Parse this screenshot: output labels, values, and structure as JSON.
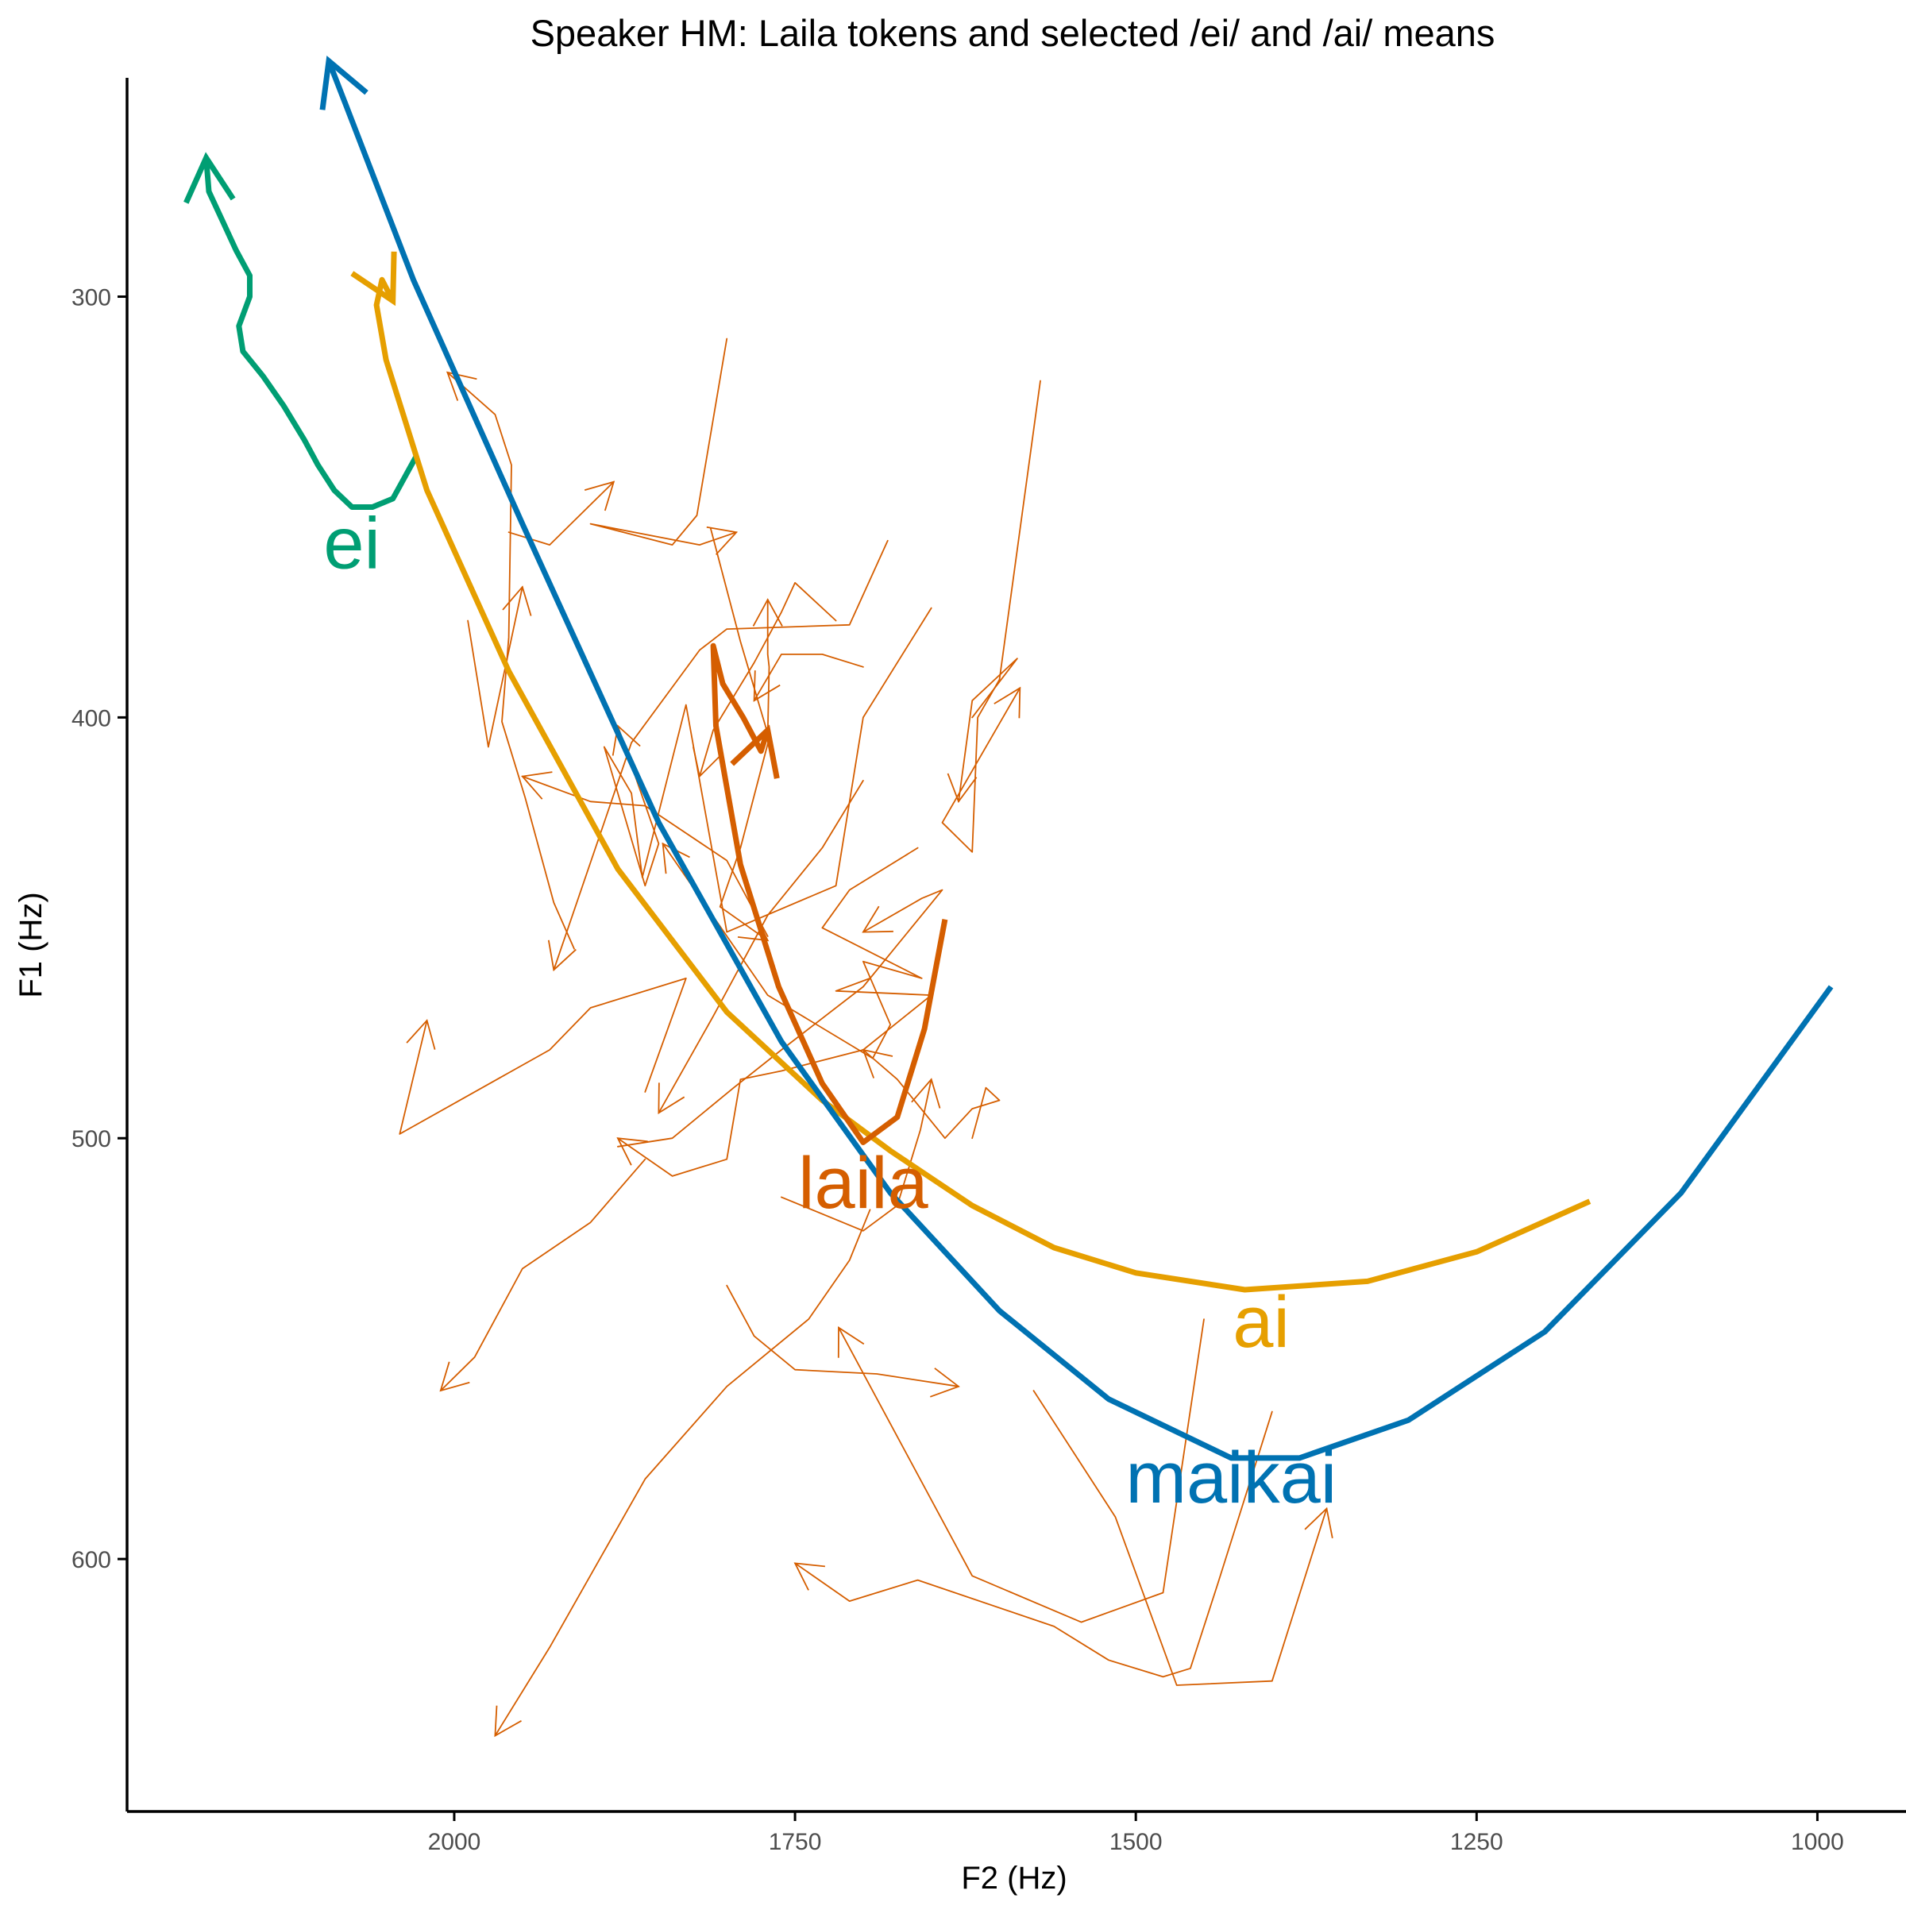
{
  "chart_data": {
    "type": "line",
    "title": "Speaker HM: Laila tokens and selected /ei/ and /ai/ means",
    "xlabel": "F2 (Hz)",
    "ylabel": "F1 (Hz)",
    "x_reversed": true,
    "y_reversed": true,
    "xlim": [
      2240,
      935
    ],
    "ylim": [
      248,
      660
    ],
    "x_ticks": [
      2000,
      1750,
      1500,
      1250,
      1000
    ],
    "y_ticks": [
      300,
      400,
      500,
      600
    ],
    "grid": false,
    "legend": "none",
    "colors": {
      "ei": "#009E73",
      "ai": "#E69F00",
      "maikai": "#0072B2",
      "laila": "#D55E00",
      "tokens": "#D55E00"
    },
    "series": [
      {
        "name": "ei",
        "label": "ei",
        "label_at": [
          2075,
          360
        ],
        "color": "#009E73",
        "x": [
          2028,
          2045,
          2060,
          2075,
          2088,
          2100,
          2110,
          2125,
          2140,
          2155,
          2158,
          2150,
          2150,
          2160,
          2170,
          2180,
          2182
        ],
        "y": [
          338,
          348,
          350,
          350,
          346,
          340,
          334,
          326,
          319,
          313,
          307,
          300,
          295,
          289,
          282,
          275,
          267
        ]
      },
      {
        "name": "ai",
        "label": "ai",
        "label_at": [
          1408,
          545
        ],
        "color": "#E69F00",
        "x": [
          1167,
          1250,
          1330,
          1420,
          1500,
          1560,
          1620,
          1680,
          1730,
          1800,
          1880,
          1960,
          2020,
          2050,
          2057,
          2053,
          2045
        ],
        "y": [
          515,
          527,
          534,
          536,
          532,
          526,
          516,
          503,
          491,
          470,
          436,
          389,
          346,
          315,
          302,
          296,
          301
        ]
      },
      {
        "name": "maikai",
        "label": "maikai",
        "label_at": [
          1430,
          582
        ],
        "color": "#0072B2",
        "x": [
          990,
          1100,
          1200,
          1300,
          1380,
          1430,
          1520,
          1600,
          1680,
          1760,
          1850,
          1950,
          2030,
          2080,
          2092
        ],
        "y": [
          464,
          513,
          546,
          567,
          576,
          576,
          562,
          541,
          513,
          477,
          425,
          354,
          296,
          254,
          244
        ]
      },
      {
        "name": "laila",
        "label": "laila",
        "label_at": [
          1700,
          512
        ],
        "color": "#D55E00",
        "x": [
          1640,
          1655,
          1675,
          1700,
          1730,
          1762,
          1790,
          1808,
          1810,
          1803,
          1788,
          1775,
          1770
        ],
        "y": [
          448,
          474,
          495,
          501,
          487,
          464,
          435,
          402,
          383,
          392,
          400,
          408,
          403
        ]
      }
    ],
    "tokens": [
      {
        "x": [
          1570,
          1600,
          1616,
          1620,
          1642,
          1585
        ],
        "y": [
          320,
          391,
          400,
          432,
          425,
          393
        ]
      },
      {
        "x": [
          1620,
          1587,
          1620,
          1630
        ],
        "y": [
          400,
          386,
          396,
          420
        ]
      },
      {
        "x": [
          1660,
          1710,
          1730,
          1657,
          1700,
          1680,
          1693,
          1770,
          1847
        ],
        "y": [
          431,
          441,
          450,
          462,
          458,
          473,
          481,
          466,
          430
        ]
      },
      {
        "x": [
          1682,
          1710,
          1800,
          1820,
          1870,
          1927
        ],
        "y": [
          358,
          378,
          379,
          384,
          406,
          460
        ]
      },
      {
        "x": [
          1650,
          1700,
          1720,
          1800,
          1830,
          1862,
          1870,
          1890,
          1860,
          1850,
          1880
        ],
        "y": [
          374,
          400,
          440,
          451,
          397,
          438,
          418,
          407,
          440,
          430,
          402
        ]
      },
      {
        "x": [
          1800,
          1822,
          1840,
          1900,
          1820,
          1793
        ],
        "y": [
          310,
          352,
          359,
          354,
          359,
          356
        ]
      },
      {
        "x": [
          1960,
          1930,
          1883
        ],
        "y": [
          356,
          359,
          344
        ]
      },
      {
        "x": [
          1990,
          1975,
          1950
        ],
        "y": [
          377,
          407,
          369
        ]
      },
      {
        "x": [
          1812,
          1790,
          1769,
          1790,
          1805,
          1770
        ],
        "y": [
          355,
          382,
          405,
          431,
          445,
          453
        ]
      },
      {
        "x": [
          1770,
          1769,
          1770,
          1770
        ],
        "y": [
          404,
          388,
          385,
          372
        ]
      },
      {
        "x": [
          1860,
          1830,
          1900,
          1930,
          2040,
          2020
        ],
        "y": [
          489,
          462,
          469,
          479,
          499,
          472
        ]
      },
      {
        "x": [
          1912,
          1927,
          1948,
          1965,
          1960,
          1958,
          1970,
          2005
        ],
        "y": [
          455,
          444,
          419,
          401,
          381,
          340,
          328,
          318
        ]
      },
      {
        "x": [
          1880,
          1840,
          1795,
          1760,
          1700,
          1642,
          1657,
          1700
        ],
        "y": [
          502,
          500,
          488,
          479,
          464,
          441,
          443,
          451
        ]
      },
      {
        "x": [
          1700,
          1730,
          1760,
          1780
        ],
        "y": [
          388,
          385,
          385,
          396
        ]
      },
      {
        "x": [
          1720,
          1750,
          1760,
          1780,
          1810,
          1820
        ],
        "y": [
          377,
          368,
          375,
          387,
          403,
          414
        ]
      },
      {
        "x": [
          1620,
          1610,
          1600,
          1620,
          1640,
          1675,
          1700
        ],
        "y": [
          500,
          488,
          491,
          493,
          500,
          486,
          479
        ]
      },
      {
        "x": [
          1695,
          1720,
          1650,
          1700,
          1760,
          1790,
          1800,
          1840,
          1880
        ],
        "y": [
          462,
          465,
          466,
          479,
          484,
          486,
          505,
          509,
          500
        ]
      },
      {
        "x": [
          1760,
          1700,
          1675,
          1658,
          1650
        ],
        "y": [
          514,
          522,
          516,
          498,
          486
        ]
      },
      {
        "x": [
          1575,
          1515,
          1470,
          1400,
          1360
        ],
        "y": [
          560,
          590,
          630,
          629,
          588
        ]
      },
      {
        "x": [
          1450,
          1480,
          1540,
          1620,
          1718
        ],
        "y": [
          543,
          608,
          615,
          604,
          545
        ]
      },
      {
        "x": [
          1695,
          1710,
          1740,
          1800,
          1860,
          1930,
          1970
        ],
        "y": [
          517,
          529,
          543,
          559,
          581,
          621,
          642
        ]
      },
      {
        "x": [
          1800,
          1780,
          1750,
          1690,
          1630
        ],
        "y": [
          535,
          547,
          555,
          556,
          559
        ]
      },
      {
        "x": [
          1770,
          1800,
          1860,
          1900,
          1950
        ],
        "y": [
          452,
          434,
          421,
          420,
          414
        ]
      },
      {
        "x": [
          1400,
          1440,
          1460,
          1480,
          1520,
          1560,
          1660,
          1710,
          1750
        ],
        "y": [
          565,
          606,
          626,
          628,
          624,
          616,
          605,
          610,
          601
        ]
      },
      {
        "x": [
          1700,
          1730,
          1770,
          1810,
          1850
        ],
        "y": [
          415,
          431,
          447,
          471,
          494
        ]
      },
      {
        "x": [
          1860,
          1900,
          1950,
          1985,
          2010
        ],
        "y": [
          505,
          520,
          531,
          552,
          560
        ]
      }
    ]
  }
}
